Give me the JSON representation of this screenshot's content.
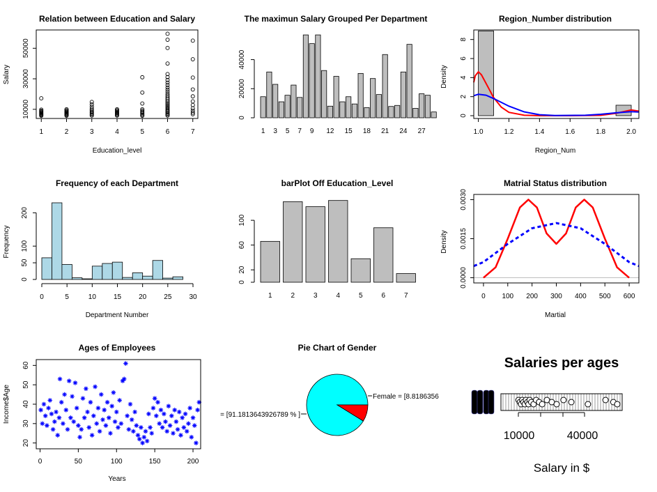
{
  "chart_data": [
    {
      "type": "scatter",
      "title": "Relation between Education and Salary",
      "xlabel": "Education_level",
      "ylabel": "Salary",
      "xlim": [
        0.8,
        7.2
      ],
      "ylim": [
        4000,
        62000
      ],
      "xticks": [
        "1",
        "2",
        "3",
        "4",
        "5",
        "6",
        "7"
      ],
      "yticks": [
        "10000",
        "30000",
        "50000"
      ],
      "points": [
        [
          1,
          17200
        ],
        [
          1,
          9800
        ],
        [
          1,
          9100
        ],
        [
          1,
          8600
        ],
        [
          1,
          8100
        ],
        [
          1,
          7600
        ],
        [
          1,
          7100
        ],
        [
          1,
          6700
        ],
        [
          1,
          6200
        ],
        [
          1,
          5800
        ],
        [
          2,
          10000
        ],
        [
          2,
          9400
        ],
        [
          2,
          8800
        ],
        [
          2,
          8300
        ],
        [
          2,
          7800
        ],
        [
          2,
          7300
        ],
        [
          2,
          6800
        ],
        [
          2,
          6300
        ],
        [
          2,
          5800
        ],
        [
          3,
          14800
        ],
        [
          3,
          13200
        ],
        [
          3,
          11700
        ],
        [
          3,
          10300
        ],
        [
          3,
          9400
        ],
        [
          3,
          8600
        ],
        [
          3,
          7900
        ],
        [
          3,
          7200
        ],
        [
          3,
          6500
        ],
        [
          3,
          5900
        ],
        [
          4,
          10000
        ],
        [
          4,
          9400
        ],
        [
          4,
          8800
        ],
        [
          4,
          8200
        ],
        [
          4,
          7600
        ],
        [
          4,
          7000
        ],
        [
          4,
          6400
        ],
        [
          4,
          5900
        ],
        [
          5,
          31000
        ],
        [
          5,
          21000
        ],
        [
          5,
          13800
        ],
        [
          5,
          10000
        ],
        [
          5,
          9200
        ],
        [
          5,
          8400
        ],
        [
          5,
          7700
        ],
        [
          5,
          7000
        ],
        [
          5,
          6300
        ],
        [
          5,
          5800
        ],
        [
          6,
          59500
        ],
        [
          6,
          55600
        ],
        [
          6,
          50200
        ],
        [
          6,
          40000
        ],
        [
          6,
          33100
        ],
        [
          6,
          31100
        ],
        [
          6,
          29200
        ],
        [
          6,
          27500
        ],
        [
          6,
          25900
        ],
        [
          6,
          24300
        ],
        [
          6,
          22800
        ],
        [
          6,
          21400
        ],
        [
          6,
          20000
        ],
        [
          6,
          18800
        ],
        [
          6,
          17600
        ],
        [
          6,
          16500
        ],
        [
          6,
          15400
        ],
        [
          6,
          14400
        ],
        [
          6,
          13500
        ],
        [
          6,
          12600
        ],
        [
          6,
          11700
        ],
        [
          6,
          10900
        ],
        [
          6,
          10100
        ],
        [
          6,
          9300
        ],
        [
          6,
          8600
        ],
        [
          6,
          7900
        ],
        [
          6,
          7200
        ],
        [
          6,
          6500
        ],
        [
          6,
          5900
        ],
        [
          7,
          55000
        ],
        [
          7,
          42800
        ],
        [
          7,
          30800
        ],
        [
          7,
          23000
        ],
        [
          7,
          18500
        ],
        [
          7,
          15200
        ],
        [
          7,
          12800
        ],
        [
          7,
          10600
        ],
        [
          7,
          9100
        ],
        [
          7,
          7800
        ],
        [
          7,
          6800
        ]
      ]
    },
    {
      "type": "bar",
      "title": "The maximun Salary Grouped Per Department",
      "tick_labels": [
        "1",
        "3",
        "5",
        "7",
        "9",
        "12",
        "15",
        "18",
        "21",
        "24",
        "27"
      ],
      "tick_positions": [
        1,
        3,
        5,
        7,
        9,
        12,
        15,
        18,
        21,
        24,
        27
      ],
      "yticks": [
        "0",
        "20000",
        "40000"
      ],
      "ylim": [
        0,
        58000
      ],
      "values": [
        14500,
        31500,
        23000,
        11000,
        15500,
        22500,
        14000,
        57000,
        51000,
        57000,
        32500,
        8000,
        28500,
        11000,
        14500,
        9500,
        30500,
        7000,
        27000,
        16000,
        43500,
        7800,
        8500,
        31500,
        50500,
        6500,
        16500,
        15500,
        4000
      ]
    },
    {
      "type": "histogram",
      "title": "Region_Number distribution",
      "xlabel": "Region_Num",
      "ylabel": "Density",
      "xlim": [
        0.97,
        2.05
      ],
      "ylim": [
        0,
        9
      ],
      "xticks": [
        "1.0",
        "1.2",
        "1.4",
        "1.6",
        "1.8",
        "2.0"
      ],
      "yticks": [
        "0",
        "2",
        "4",
        "6",
        "8"
      ],
      "bins": [
        {
          "from": 1.0,
          "to": 1.1,
          "density": 8.9
        },
        {
          "from": 1.9,
          "to": 2.0,
          "density": 1.1
        }
      ],
      "curves": [
        {
          "color": "#ff0000",
          "style": "solid",
          "points": [
            [
              0.97,
              3.5
            ],
            [
              0.98,
              4.2
            ],
            [
              1.0,
              4.6
            ],
            [
              1.02,
              4.3
            ],
            [
              1.05,
              3.4
            ],
            [
              1.1,
              1.9
            ],
            [
              1.15,
              0.9
            ],
            [
              1.2,
              0.35
            ],
            [
              1.3,
              0.05
            ],
            [
              1.4,
              0.0
            ],
            [
              1.6,
              0.0
            ],
            [
              1.8,
              0.04
            ],
            [
              1.9,
              0.25
            ],
            [
              2.0,
              0.6
            ],
            [
              2.05,
              0.48
            ]
          ]
        },
        {
          "color": "#0000ff",
          "style": "solid",
          "points": [
            [
              0.97,
              2.1
            ],
            [
              1.0,
              2.25
            ],
            [
              1.05,
              2.15
            ],
            [
              1.1,
              1.8
            ],
            [
              1.2,
              1.0
            ],
            [
              1.3,
              0.4
            ],
            [
              1.4,
              0.1
            ],
            [
              1.5,
              0.02
            ],
            [
              1.7,
              0.05
            ],
            [
              1.8,
              0.15
            ],
            [
              1.9,
              0.3
            ],
            [
              2.0,
              0.42
            ],
            [
              2.05,
              0.38
            ]
          ]
        }
      ]
    },
    {
      "type": "histogram",
      "title": "Frequency of each Department",
      "xlabel": "Department Number",
      "ylabel": "Frequency",
      "xlim": [
        0,
        30
      ],
      "ylim": [
        0,
        230
      ],
      "xticks": [
        "0",
        "5",
        "10",
        "15",
        "20",
        "25",
        "30"
      ],
      "yticks": [
        "0",
        "50",
        "100",
        "200"
      ],
      "bar_color": "#add8e6",
      "bin_width": 2,
      "values": [
        65,
        230,
        45,
        5,
        2,
        40,
        48,
        52,
        6,
        20,
        10,
        57,
        4,
        8
      ]
    },
    {
      "type": "bar",
      "title": "barPlot Off Education_Level",
      "categories": [
        "1",
        "2",
        "3",
        "4",
        "5",
        "6",
        "7"
      ],
      "values": [
        66,
        130,
        122,
        132,
        38,
        88,
        14
      ],
      "ylim": [
        0,
        135
      ],
      "yticks": [
        "0",
        "20",
        "60",
        "100"
      ]
    },
    {
      "type": "line",
      "title": "Matrial Status distribution",
      "xlabel": "Martial",
      "ylabel": "Density",
      "xlim": [
        -40,
        640
      ],
      "ylim": [
        -0.0002,
        0.0032
      ],
      "xticks": [
        "0",
        "100",
        "200",
        "300",
        "400",
        "500",
        "600"
      ],
      "yticks": [
        "0.0000",
        "0.0015",
        "0.0030"
      ],
      "series": [
        {
          "color": "#ff0000",
          "style": "solid",
          "values": [
            [
              0,
              0
            ],
            [
              50,
              0.0004
            ],
            [
              100,
              0.0015
            ],
            [
              150,
              0.0027
            ],
            [
              185,
              0.003
            ],
            [
              220,
              0.0027
            ],
            [
              260,
              0.0017
            ],
            [
              300,
              0.0013
            ],
            [
              340,
              0.0017
            ],
            [
              380,
              0.0027
            ],
            [
              415,
              0.003
            ],
            [
              450,
              0.0027
            ],
            [
              500,
              0.0015
            ],
            [
              550,
              0.0004
            ],
            [
              600,
              0.0
            ]
          ]
        },
        {
          "color": "#0000ff",
          "style": "dashed",
          "values": [
            [
              -40,
              0.00045
            ],
            [
              0,
              0.0006
            ],
            [
              100,
              0.0013
            ],
            [
              200,
              0.0019
            ],
            [
              300,
              0.0021
            ],
            [
              400,
              0.0019
            ],
            [
              500,
              0.0013
            ],
            [
              600,
              0.0006
            ],
            [
              640,
              0.00045
            ]
          ]
        }
      ]
    },
    {
      "type": "scatter",
      "title": "Ages of Employees",
      "xlabel": "Years",
      "ylabel": "Income$Age",
      "xlim": [
        -5,
        210
      ],
      "ylim": [
        17,
        63
      ],
      "xticks": [
        "0",
        "50",
        "100",
        "150",
        "200"
      ],
      "yticks": [
        "20",
        "30",
        "40",
        "50",
        "60"
      ],
      "marker": "*",
      "color": "#0000ff",
      "points": [
        [
          1,
          37
        ],
        [
          3,
          30
        ],
        [
          5,
          40
        ],
        [
          7,
          34
        ],
        [
          9,
          29
        ],
        [
          11,
          38
        ],
        [
          13,
          42
        ],
        [
          15,
          35
        ],
        [
          17,
          27
        ],
        [
          19,
          31
        ],
        [
          21,
          36
        ],
        [
          23,
          24
        ],
        [
          25,
          33
        ],
        [
          26,
          53
        ],
        [
          28,
          41
        ],
        [
          30,
          30
        ],
        [
          32,
          45
        ],
        [
          34,
          37
        ],
        [
          36,
          27
        ],
        [
          38,
          52
        ],
        [
          40,
          33
        ],
        [
          42,
          44
        ],
        [
          44,
          31
        ],
        [
          46,
          51
        ],
        [
          48,
          38
        ],
        [
          50,
          29
        ],
        [
          52,
          23
        ],
        [
          54,
          27
        ],
        [
          56,
          43
        ],
        [
          58,
          33
        ],
        [
          60,
          48
        ],
        [
          62,
          36
        ],
        [
          64,
          28
        ],
        [
          66,
          41
        ],
        [
          68,
          24
        ],
        [
          70,
          34
        ],
        [
          72,
          49
        ],
        [
          74,
          30
        ],
        [
          76,
          38
        ],
        [
          78,
          26
        ],
        [
          80,
          45
        ],
        [
          82,
          32
        ],
        [
          84,
          37
        ],
        [
          86,
          29
        ],
        [
          88,
          41
        ],
        [
          90,
          33
        ],
        [
          92,
          25
        ],
        [
          94,
          39
        ],
        [
          96,
          46
        ],
        [
          98,
          31
        ],
        [
          100,
          36
        ],
        [
          102,
          28
        ],
        [
          104,
          42
        ],
        [
          106,
          30
        ],
        [
          108,
          52
        ],
        [
          110,
          53
        ],
        [
          112,
          61
        ],
        [
          114,
          34
        ],
        [
          116,
          27
        ],
        [
          118,
          40
        ],
        [
          120,
          32
        ],
        [
          122,
          26
        ],
        [
          124,
          36
        ],
        [
          126,
          29
        ],
        [
          128,
          24
        ],
        [
          130,
          22
        ],
        [
          132,
          28
        ],
        [
          134,
          20
        ],
        [
          136,
          23
        ],
        [
          138,
          26
        ],
        [
          140,
          21
        ],
        [
          142,
          35
        ],
        [
          144,
          28
        ],
        [
          146,
          25
        ],
        [
          148,
          38
        ],
        [
          150,
          43
        ],
        [
          152,
          34
        ],
        [
          154,
          41
        ],
        [
          156,
          30
        ],
        [
          158,
          37
        ],
        [
          160,
          28
        ],
        [
          162,
          35
        ],
        [
          164,
          31
        ],
        [
          166,
          26
        ],
        [
          168,
          39
        ],
        [
          170,
          29
        ],
        [
          172,
          34
        ],
        [
          174,
          25
        ],
        [
          176,
          37
        ],
        [
          178,
          31
        ],
        [
          180,
          27
        ],
        [
          182,
          36
        ],
        [
          184,
          24
        ],
        [
          186,
          33
        ],
        [
          188,
          28
        ],
        [
          190,
          35
        ],
        [
          192,
          26
        ],
        [
          194,
          30
        ],
        [
          196,
          38
        ],
        [
          198,
          23
        ],
        [
          200,
          33
        ],
        [
          202,
          29
        ],
        [
          204,
          20
        ],
        [
          206,
          37
        ],
        [
          208,
          41
        ]
      ]
    },
    {
      "type": "pie",
      "title": "Pie Chart of Gender",
      "labels": [
        "= [91.1813643926789 % ]",
        "Female = [8.8186356"
      ],
      "values": [
        91.1813643926789,
        8.8186356
      ],
      "colors": [
        "#00ffff",
        "#ff0000"
      ]
    },
    {
      "type": "boxplot",
      "title": "Salaries per ages",
      "xlabel": "Salary in $",
      "xticks": [
        "10000",
        "40000"
      ],
      "xlim": [
        -5000,
        62000
      ],
      "box": {
        "q1": 7500,
        "median": 9500,
        "q3": 62000
      },
      "outliers": [
        6500,
        7200,
        7800,
        8400,
        9000,
        9700,
        10300,
        11000,
        11600,
        12200,
        13000,
        14200,
        15500,
        17000,
        18600,
        21000,
        23500,
        26000,
        29500,
        33500,
        42000,
        51000,
        55000,
        57000
      ]
    }
  ]
}
